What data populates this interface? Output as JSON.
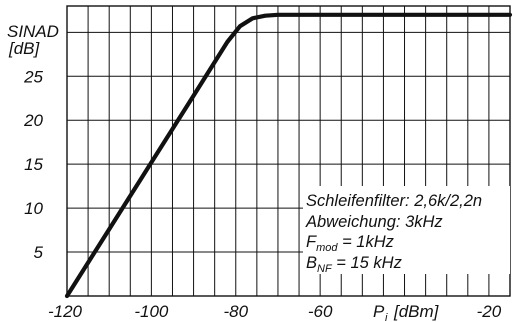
{
  "chart_data": {
    "type": "line",
    "ylabel_line1": "SINAD",
    "ylabel_line2": "[dB]",
    "xlabel_main": "P",
    "xlabel_sub": "i",
    "xlabel_unit": "[dBm]",
    "xlim": [
      -120,
      -15
    ],
    "ylim": [
      0,
      33
    ],
    "x_ticks": [
      -120,
      -100,
      -80,
      -60,
      -40,
      -20
    ],
    "x_tick_labels": [
      "-120",
      "-100",
      "-80",
      "-60",
      "",
      "-20"
    ],
    "y_ticks": [
      5,
      10,
      15,
      20,
      25
    ],
    "y_tick_labels": [
      "5",
      "10",
      "15",
      "20",
      "25"
    ],
    "x_gridlines": [
      -120,
      -115,
      -110,
      -105,
      -100,
      -95,
      -90,
      -85,
      -80,
      -75,
      -70,
      -65,
      -60,
      -55,
      -50,
      -45,
      -40,
      -35,
      -30,
      -25,
      -20,
      -15
    ],
    "y_gridlines": [
      5,
      10,
      15,
      20,
      25,
      30
    ],
    "grid": true,
    "series": [
      {
        "x": [
          -120,
          -110,
          -100,
          -90,
          -82,
          -79,
          -76,
          -73,
          -70,
          -65,
          -55,
          -40,
          -30,
          -20,
          -15
        ],
        "y": [
          0,
          7.6,
          15.2,
          22.8,
          28.9,
          30.7,
          31.6,
          31.9,
          32.0,
          32.0,
          32.0,
          32.0,
          32.0,
          32.0,
          32.0
        ],
        "color": "#111111"
      }
    ],
    "annotations": {
      "line1": "Schleifenfilter: 2,6k/2,2n",
      "line2": "Abweichung: 3kHz",
      "line3_main": "F",
      "line3_sub": "mod",
      "line3_rest": " = 1kHz",
      "line4_main": "B",
      "line4_sub": "NF",
      "line4_rest": " = 15 kHz"
    }
  }
}
